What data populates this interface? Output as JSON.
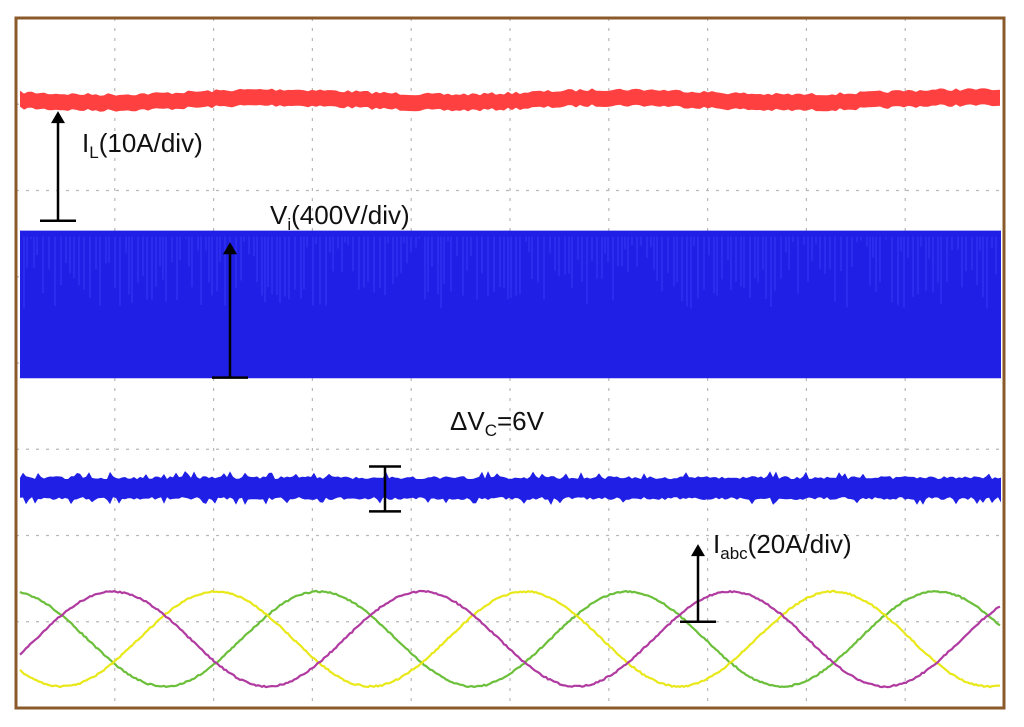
{
  "chart_data": {
    "type": "line",
    "title": "",
    "xlabel": "",
    "ylabel": "",
    "grid": true,
    "grid_divisions": {
      "x": 10,
      "y": 8
    },
    "colors": {
      "frame": "#8B5A2B",
      "grid": "#b8b8b8",
      "il": "#ff4040",
      "vi": "#1f1fe6",
      "dvc": "#1f1fe6",
      "phase_a": "#e8e81a",
      "phase_b": "#b03aa0",
      "phase_c": "#6cbf3a"
    },
    "series": [
      {
        "key": "il",
        "label_main": "I",
        "label_sub": "L",
        "label_rest": "(10A/div)",
        "level_div": 1.0,
        "shape": "flat"
      },
      {
        "key": "vi",
        "label_main": "V",
        "label_sub": "i",
        "label_rest": "(400V/div)",
        "level_div": 0.95,
        "shape": "pwm"
      },
      {
        "key": "dvc",
        "label_main": "ΔV",
        "label_sub": "C",
        "label_rest": "=6V",
        "ripple_volts": 6,
        "shape": "ripple"
      },
      {
        "key": "iabc",
        "label_main": "I",
        "label_sub": "abc",
        "label_rest": "(20A/div)",
        "amplitude_div": 0.5,
        "cycles_shown": 3.2,
        "phases": [
          "a",
          "b",
          "c"
        ],
        "shape": "sine"
      }
    ]
  }
}
